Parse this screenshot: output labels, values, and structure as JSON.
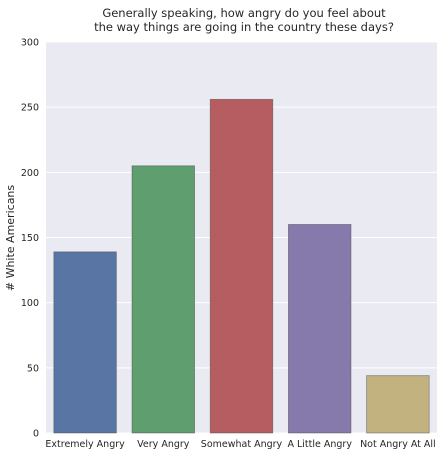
{
  "chart_data": {
    "type": "bar",
    "title_lines": [
      "Generally speaking, how angry do you feel about",
      "the way things are going in the country these days?"
    ],
    "xlabel": "",
    "ylabel": "# White Americans",
    "categories": [
      "Extremely Angry",
      "Very Angry",
      "Somewhat Angry",
      "A Little Angry",
      "Not Angry At All"
    ],
    "values": [
      139,
      205,
      256,
      160,
      44
    ],
    "colors": [
      "#5875a4",
      "#5f9e6e",
      "#b55d60",
      "#857aab",
      "#c2b280"
    ],
    "ylim": [
      0,
      300
    ],
    "yticks": [
      "0",
      "50",
      "100",
      "150",
      "200",
      "250",
      "300"
    ],
    "grid": true,
    "background": "#eaeaf2"
  }
}
